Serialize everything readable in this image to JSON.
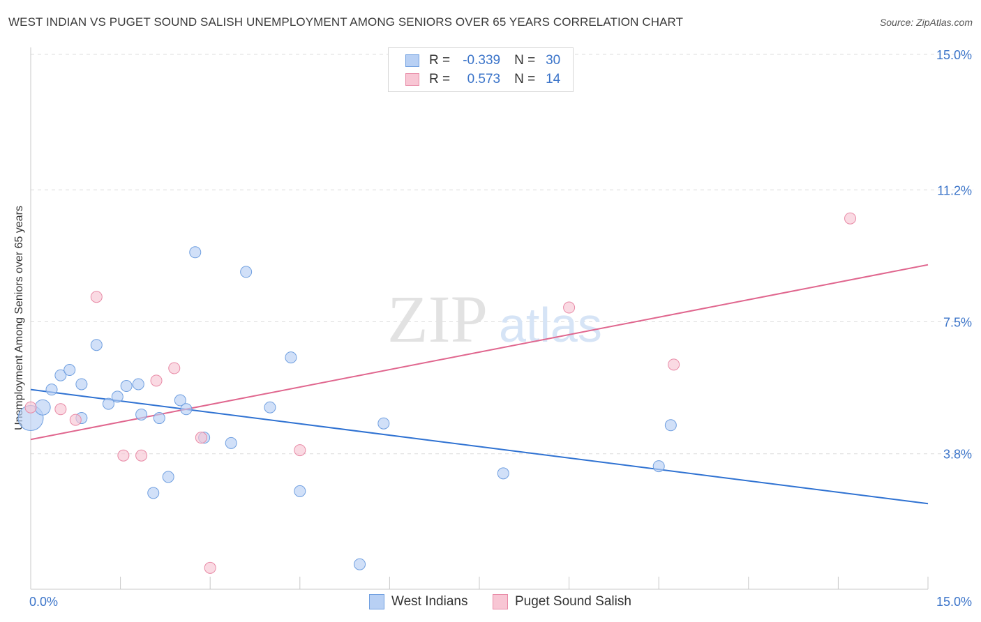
{
  "title": "WEST INDIAN VS PUGET SOUND SALISH UNEMPLOYMENT AMONG SENIORS OVER 65 YEARS CORRELATION CHART",
  "source": "Source: ZipAtlas.com",
  "watermark": {
    "zip": "ZIP",
    "atlas": "atlas"
  },
  "legend": {
    "rows": [
      {
        "r_label": "R =",
        "r_value": "-0.339",
        "n_label": "N =",
        "n_value": "30",
        "fill": "#b8d0f4",
        "stroke": "#6f9fe0"
      },
      {
        "r_label": "R =",
        "r_value": "0.573",
        "n_label": "N =",
        "n_value": "14",
        "fill": "#f8c6d4",
        "stroke": "#e88aa6"
      }
    ]
  },
  "bottom_legend": [
    {
      "label": "West Indians",
      "fill": "#b8d0f4",
      "stroke": "#6f9fe0"
    },
    {
      "label": "Puget Sound Salish",
      "fill": "#f8c6d4",
      "stroke": "#e88aa6"
    }
  ],
  "chart_data": {
    "type": "scatter",
    "title": "WEST INDIAN VS PUGET SOUND SALISH UNEMPLOYMENT AMONG SENIORS OVER 65 YEARS CORRELATION CHART",
    "xlabel": "",
    "ylabel": "Unemployment Among Seniors over 65 years",
    "xlim": [
      0,
      15
    ],
    "ylim": [
      0,
      15
    ],
    "x_tick_labels": [
      {
        "value": 0,
        "label": "0.0%"
      },
      {
        "value": 15,
        "label": "15.0%"
      }
    ],
    "y_tick_labels": [
      {
        "value": 3.8,
        "label": "3.8%"
      },
      {
        "value": 7.5,
        "label": "7.5%"
      },
      {
        "value": 11.2,
        "label": "11.2%"
      },
      {
        "value": 15.0,
        "label": "15.0%"
      }
    ],
    "series": [
      {
        "name": "West Indians",
        "color": "#6f9fe0",
        "fill": "#b8d0f4",
        "trend_color": "#2f72d2",
        "trend": {
          "x": [
            0,
            15
          ],
          "y": [
            5.6,
            2.4
          ]
        },
        "points": [
          {
            "x": 0.0,
            "y": 4.8,
            "size": 3
          },
          {
            "x": 0.2,
            "y": 5.1,
            "size": 2
          },
          {
            "x": 0.35,
            "y": 5.6,
            "size": 1
          },
          {
            "x": 0.5,
            "y": 6.0,
            "size": 1
          },
          {
            "x": 0.65,
            "y": 6.15,
            "size": 1
          },
          {
            "x": 0.85,
            "y": 5.75,
            "size": 1
          },
          {
            "x": 0.85,
            "y": 4.8,
            "size": 1
          },
          {
            "x": 1.1,
            "y": 6.85,
            "size": 1
          },
          {
            "x": 1.3,
            "y": 5.2,
            "size": 1
          },
          {
            "x": 1.45,
            "y": 5.4,
            "size": 1
          },
          {
            "x": 1.6,
            "y": 5.7,
            "size": 1
          },
          {
            "x": 1.8,
            "y": 5.75,
            "size": 1
          },
          {
            "x": 1.85,
            "y": 4.9,
            "size": 1
          },
          {
            "x": 2.05,
            "y": 2.7,
            "size": 1
          },
          {
            "x": 2.15,
            "y": 4.8,
            "size": 1
          },
          {
            "x": 2.3,
            "y": 3.15,
            "size": 1
          },
          {
            "x": 2.5,
            "y": 5.3,
            "size": 1
          },
          {
            "x": 2.6,
            "y": 5.05,
            "size": 1
          },
          {
            "x": 2.75,
            "y": 9.45,
            "size": 1
          },
          {
            "x": 2.9,
            "y": 4.25,
            "size": 1
          },
          {
            "x": 3.35,
            "y": 4.1,
            "size": 1
          },
          {
            "x": 3.6,
            "y": 8.9,
            "size": 1
          },
          {
            "x": 4.0,
            "y": 5.1,
            "size": 1
          },
          {
            "x": 4.35,
            "y": 6.5,
            "size": 1
          },
          {
            "x": 4.5,
            "y": 2.75,
            "size": 1
          },
          {
            "x": 5.5,
            "y": 0.7,
            "size": 1
          },
          {
            "x": 5.9,
            "y": 4.65,
            "size": 1
          },
          {
            "x": 7.9,
            "y": 3.25,
            "size": 1
          },
          {
            "x": 10.5,
            "y": 3.45,
            "size": 1
          },
          {
            "x": 10.7,
            "y": 4.6,
            "size": 1
          }
        ]
      },
      {
        "name": "Puget Sound Salish",
        "color": "#e88aa6",
        "fill": "#f8c6d4",
        "trend_color": "#e0668e",
        "trend": {
          "x": [
            0,
            15
          ],
          "y": [
            4.2,
            9.1
          ]
        },
        "points": [
          {
            "x": 0.0,
            "y": 5.1,
            "size": 1
          },
          {
            "x": 0.5,
            "y": 5.05,
            "size": 1
          },
          {
            "x": 0.75,
            "y": 4.75,
            "size": 1
          },
          {
            "x": 1.1,
            "y": 8.2,
            "size": 1
          },
          {
            "x": 1.55,
            "y": 3.75,
            "size": 1
          },
          {
            "x": 1.85,
            "y": 3.75,
            "size": 1
          },
          {
            "x": 2.1,
            "y": 5.85,
            "size": 1
          },
          {
            "x": 2.4,
            "y": 6.2,
            "size": 1
          },
          {
            "x": 2.85,
            "y": 4.25,
            "size": 1
          },
          {
            "x": 3.0,
            "y": 0.6,
            "size": 1
          },
          {
            "x": 4.5,
            "y": 3.9,
            "size": 1
          },
          {
            "x": 9.0,
            "y": 7.9,
            "size": 1
          },
          {
            "x": 10.75,
            "y": 6.3,
            "size": 1
          },
          {
            "x": 13.7,
            "y": 10.4,
            "size": 1
          }
        ]
      }
    ]
  }
}
